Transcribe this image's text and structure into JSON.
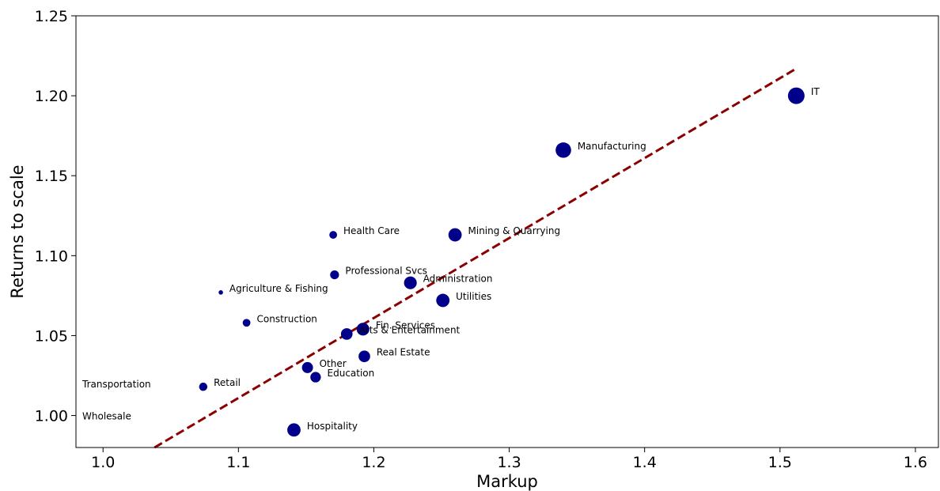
{
  "chart_data": {
    "type": "scatter",
    "title": "",
    "xlabel": "Markup",
    "ylabel": "Returns to scale",
    "xlim": [
      0.98,
      1.617
    ],
    "ylim": [
      0.98,
      1.25
    ],
    "xticks": [
      {
        "value": 1.0,
        "label": "1.0"
      },
      {
        "value": 1.1,
        "label": "1.1"
      },
      {
        "value": 1.2,
        "label": "1.2"
      },
      {
        "value": 1.3,
        "label": "1.3"
      },
      {
        "value": 1.4,
        "label": "1.4"
      },
      {
        "value": 1.5,
        "label": "1.5"
      },
      {
        "value": 1.6,
        "label": "1.6"
      }
    ],
    "yticks": [
      {
        "value": 1.0,
        "label": "1.00"
      },
      {
        "value": 1.05,
        "label": "1.05"
      },
      {
        "value": 1.1,
        "label": "1.10"
      },
      {
        "value": 1.15,
        "label": "1.15"
      },
      {
        "value": 1.2,
        "label": "1.20"
      },
      {
        "value": 1.25,
        "label": "1.25"
      }
    ],
    "grid": false,
    "marker_color": "#00008b",
    "fit_line_color": "#8b0000",
    "fit_line": {
      "x": [
        1.038,
        1.512
      ],
      "y": [
        0.98,
        1.217
      ]
    },
    "points": [
      {
        "label": "IT",
        "x": 1.512,
        "y": 1.2,
        "size": 3
      },
      {
        "label": "Manufacturing",
        "x": 1.34,
        "y": 1.166,
        "size": 2.8
      },
      {
        "label": "Mining & Quarrying",
        "x": 1.26,
        "y": 1.113,
        "size": 2.4
      },
      {
        "label": "Health Care",
        "x": 1.17,
        "y": 1.113,
        "size": 1.4
      },
      {
        "label": "Professional Svcs",
        "x": 1.171,
        "y": 1.088,
        "size": 1.6
      },
      {
        "label": "Administration",
        "x": 1.227,
        "y": 1.083,
        "size": 2.3
      },
      {
        "label": "Agriculture & Fishing",
        "x": 1.087,
        "y": 1.077,
        "size": 0.8
      },
      {
        "label": "Utilities",
        "x": 1.251,
        "y": 1.072,
        "size": 2.4
      },
      {
        "label": "Construction",
        "x": 1.106,
        "y": 1.058,
        "size": 1.4
      },
      {
        "label": "Fin. Services",
        "x": 1.192,
        "y": 1.054,
        "size": 2.3
      },
      {
        "label": "Arts & Entertainment",
        "x": 1.18,
        "y": 1.051,
        "size": 2.1
      },
      {
        "label": "Real Estate",
        "x": 1.193,
        "y": 1.037,
        "size": 2.1
      },
      {
        "label": "Other",
        "x": 1.151,
        "y": 1.03,
        "size": 2.0
      },
      {
        "label": "Education",
        "x": 1.157,
        "y": 1.024,
        "size": 1.9
      },
      {
        "label": "Retail",
        "x": 1.074,
        "y": 1.018,
        "size": 1.5
      },
      {
        "label": "Hospitality",
        "x": 1.141,
        "y": 0.991,
        "size": 2.4
      },
      {
        "label": "Transportation",
        "x": 0.98,
        "y": 1.017,
        "size": 0
      },
      {
        "label": "Wholesale",
        "x": 0.98,
        "y": 0.997,
        "size": 0
      }
    ]
  }
}
